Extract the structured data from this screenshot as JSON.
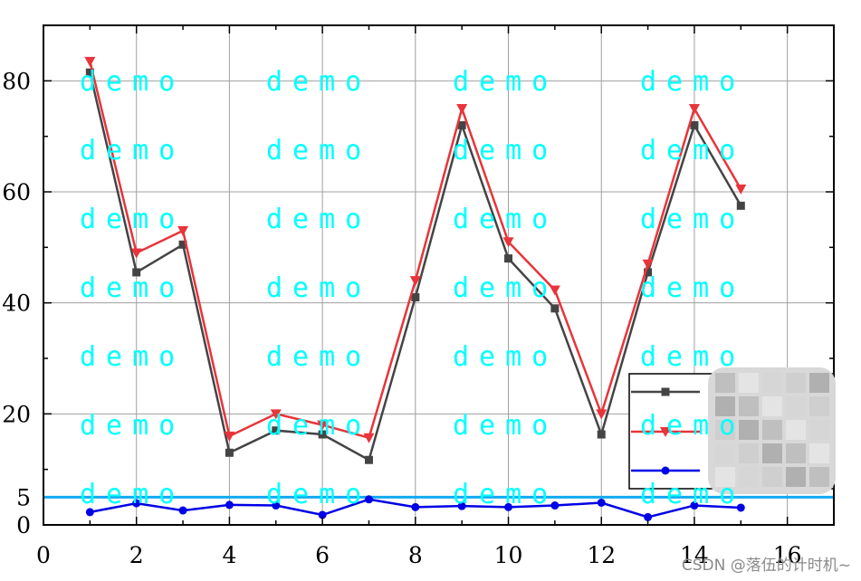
{
  "chart_data": {
    "type": "line",
    "xlim": [
      0,
      17
    ],
    "ylim": [
      0,
      90
    ],
    "x_ticks": [
      0,
      2,
      4,
      6,
      8,
      10,
      12,
      14,
      16
    ],
    "y_ticks": [
      0,
      5,
      20,
      40,
      60,
      80
    ],
    "grid": true,
    "x": [
      1,
      2,
      3,
      4,
      5,
      6,
      7,
      8,
      9,
      10,
      11,
      12,
      13,
      14,
      15
    ],
    "series": [
      {
        "color": "#444444",
        "marker": "square",
        "values": [
          81.5,
          45.5,
          50.5,
          13.0,
          17.0,
          16.3,
          11.7,
          41.0,
          72.0,
          48.0,
          39.0,
          16.3,
          45.5,
          72.0,
          57.5
        ]
      },
      {
        "color": "#e8343a",
        "marker": "triangle-down",
        "values": [
          83.5,
          49.0,
          53.0,
          16.0,
          20.0,
          18.0,
          15.7,
          44.0,
          75.0,
          51.0,
          42.3,
          20.0,
          47.0,
          75.0,
          60.5
        ]
      },
      {
        "color": "#0000e6",
        "marker": "circle",
        "values": [
          2.3,
          3.9,
          2.6,
          3.6,
          3.5,
          1.8,
          4.6,
          3.2,
          3.4,
          3.2,
          3.5,
          4.0,
          1.4,
          3.5,
          3.1
        ]
      }
    ],
    "reference_line": {
      "y": 5,
      "color": "#11aaf0"
    },
    "legend": {
      "position": "bottom-right",
      "entries_obscured": true
    }
  },
  "watermark": {
    "text": "demo",
    "color": "#00ffff"
  },
  "credit": "CSDN @落伍的计时机~"
}
